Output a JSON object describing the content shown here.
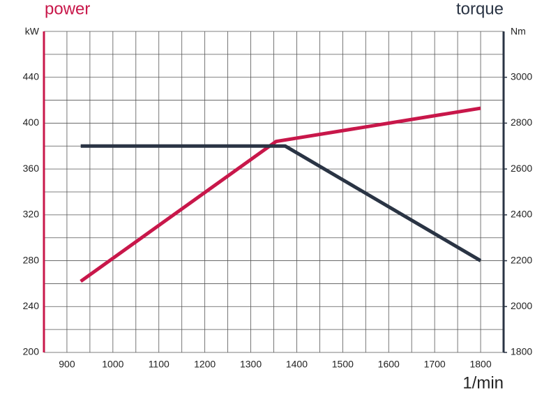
{
  "chart_data": {
    "type": "line",
    "x_label": "1/min",
    "y_label": "kW",
    "y2_label": "Nm",
    "xlim": [
      850,
      1850
    ],
    "xticks": [
      900,
      1000,
      1100,
      1200,
      1300,
      1400,
      1500,
      1600,
      1700,
      1800
    ],
    "ylim": [
      200,
      480
    ],
    "yticks": [
      200,
      240,
      280,
      320,
      360,
      400,
      440
    ],
    "y2lim": [
      1800,
      3200
    ],
    "y2ticks": [
      1800,
      2000,
      2200,
      2400,
      2600,
      2800,
      3000
    ],
    "grid": true,
    "series": [
      {
        "name": "power",
        "color": "#c8174a",
        "x": [
          930,
          1355,
          1800
        ],
        "values": [
          262,
          384,
          413
        ]
      },
      {
        "name": "torque",
        "color": "#2a3444",
        "axis": "y2",
        "x": [
          930,
          1375,
          1800
        ],
        "values": [
          2700,
          2700,
          2200
        ]
      }
    ]
  }
}
